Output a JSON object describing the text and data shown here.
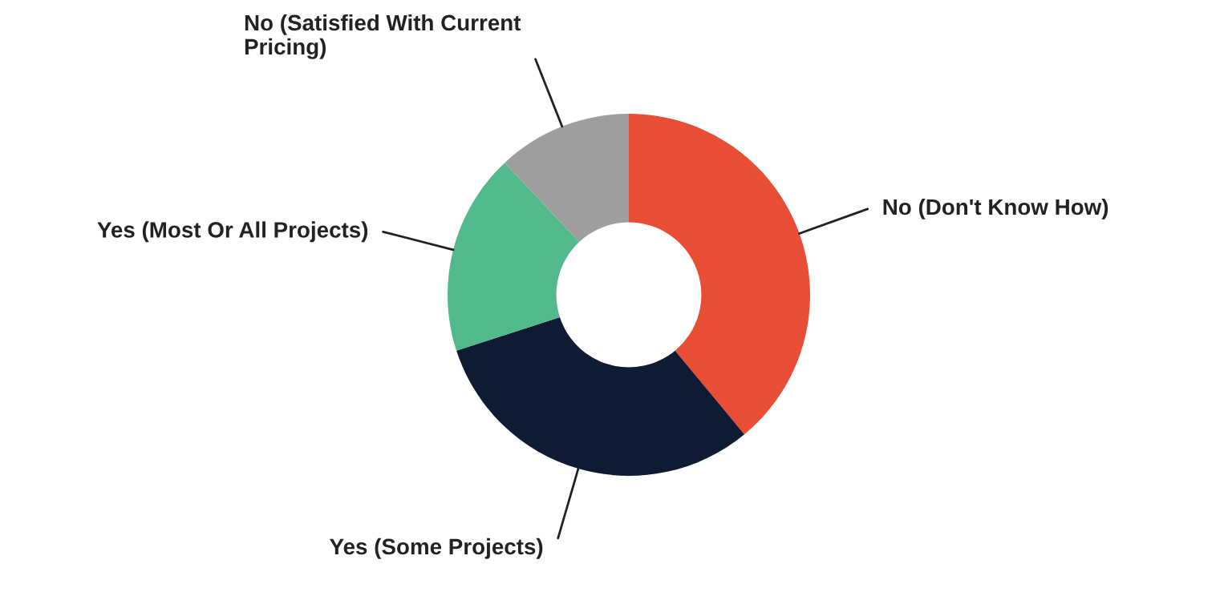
{
  "chart_data": {
    "type": "donut",
    "categories": [
      "No (Don't Know How)",
      "Yes (Some Projects)",
      "Yes (Most Or All Projects)",
      "No (Satisfied With Current\nPricing)"
    ],
    "values": [
      39,
      31,
      18,
      12
    ],
    "colors": [
      "#e84e36",
      "#0f1a33",
      "#52b98a",
      "#9e9e9e"
    ]
  }
}
